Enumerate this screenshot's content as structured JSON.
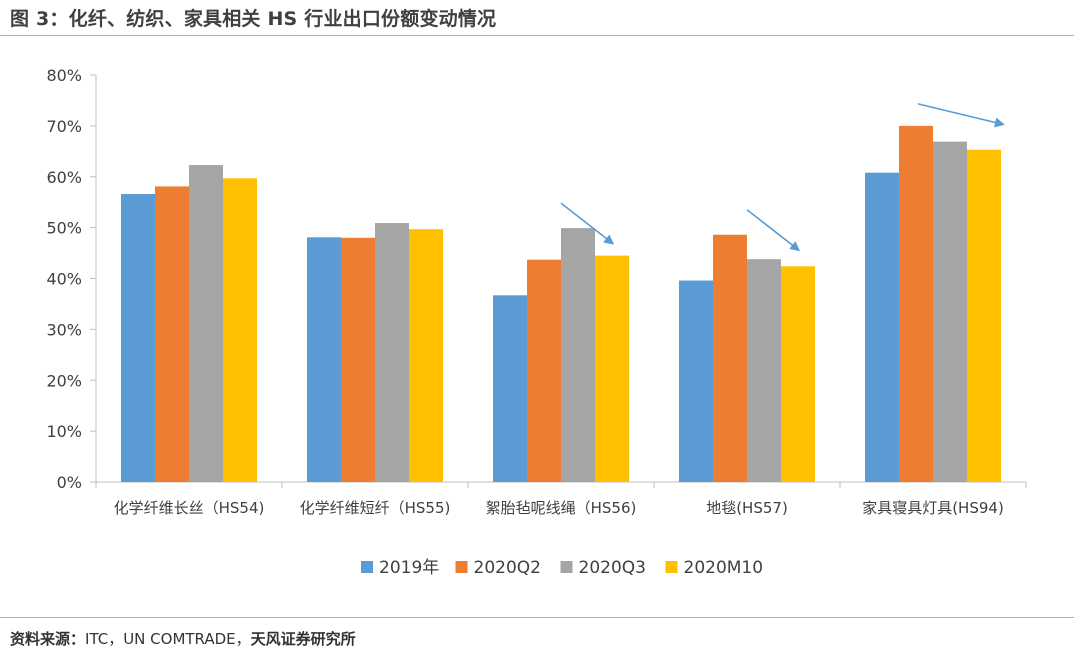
{
  "figure": {
    "title": "图 3：化纤、纺织、家具相关 HS 行业出口份额变动情况",
    "source_label": "资料来源：",
    "source_text": "ITC，UN COMTRADE，",
    "source_org": "天风证券研究所"
  },
  "chart_data": {
    "type": "bar",
    "title": "",
    "xlabel": "",
    "ylabel": "",
    "ylim": [
      0,
      80
    ],
    "yticks": [
      "0%",
      "10%",
      "20%",
      "30%",
      "40%",
      "50%",
      "60%",
      "70%",
      "80%"
    ],
    "grid": false,
    "legend_position": "bottom",
    "categories": [
      "化学纤维长丝（HS54)",
      "化学纤维短纤（HS55)",
      "絮胎毡呢线绳（HS56)",
      "地毯(HS57)",
      "家具寝具灯具(HS94)"
    ],
    "series": [
      {
        "name": "2019年",
        "color": "#5B9BD5",
        "values": [
          56.6,
          48.1,
          36.7,
          39.6,
          60.8
        ]
      },
      {
        "name": "2020Q2",
        "color": "#ED7D31",
        "values": [
          58.1,
          48.0,
          43.7,
          48.6,
          70.0
        ]
      },
      {
        "name": "2020Q3",
        "color": "#A5A5A5",
        "values": [
          62.3,
          50.9,
          49.9,
          43.8,
          66.9
        ]
      },
      {
        "name": "2020M10",
        "color": "#FFC000",
        "values": [
          59.7,
          49.7,
          44.5,
          42.4,
          65.3
        ]
      }
    ],
    "annotations": [
      {
        "type": "arrow",
        "category_index": 2,
        "color": "#5B9BD5",
        "direction": "down-right"
      },
      {
        "type": "arrow",
        "category_index": 3,
        "color": "#5B9BD5",
        "direction": "down-right"
      },
      {
        "type": "arrow",
        "category_index": 4,
        "color": "#5B9BD5",
        "direction": "down-right"
      }
    ]
  }
}
